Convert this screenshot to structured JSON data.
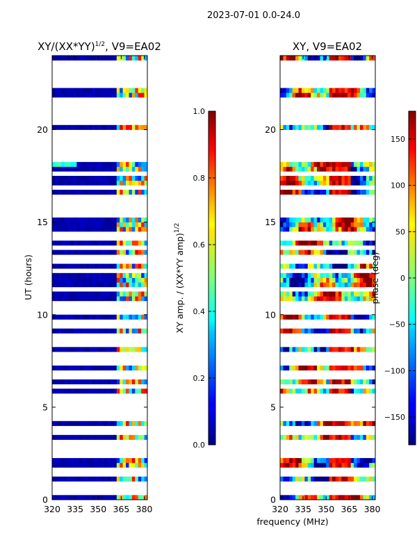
{
  "chart_data": {
    "suptitle": "2023-07-01 0.0-24.0",
    "shared_xlabel": "frequency (MHz)",
    "panels": [
      {
        "type": "heatmap",
        "title_main": "XY/(XX*YY)",
        "title_sup": "1/2",
        "title_tail": ", V9=EA02",
        "xlabel": "",
        "ylabel": "UT (hours)",
        "xlim": [
          320,
          382
        ],
        "ylim": [
          0,
          24
        ],
        "x_ticks": [
          320,
          335,
          350,
          365,
          380
        ],
        "y_ticks": [
          0,
          5,
          10,
          15,
          20
        ],
        "colorbar": {
          "label_main": "XY amp. / (XX*YY amp)",
          "label_sup": "1/2",
          "range": [
            0.0,
            1.0
          ],
          "ticks": [
            0.0,
            0.2,
            0.4,
            0.6,
            0.8,
            1.0
          ],
          "tick_labels": [
            "0.0",
            "0.2",
            "0.4",
            "0.6",
            "0.8",
            "1.0"
          ]
        }
      },
      {
        "type": "heatmap",
        "title_main": "XY, V9=EA02",
        "xlabel": "",
        "ylabel": "",
        "xlim": [
          320,
          382
        ],
        "ylim": [
          0,
          24
        ],
        "x_ticks": [
          320,
          335,
          350,
          365,
          380
        ],
        "y_ticks": [
          0,
          5,
          10,
          15,
          20
        ],
        "colorbar": {
          "label_main": "phase (deg)",
          "range": [
            -180,
            180
          ],
          "ticks": [
            -150,
            -100,
            -50,
            0,
            50,
            100,
            150
          ],
          "tick_labels": [
            "−150",
            "−100",
            "−50",
            "0",
            "50",
            "100",
            "150"
          ]
        }
      }
    ],
    "flagged_ut_hours": [
      0.3,
      0.55,
      0.9,
      1.4,
      1.6,
      2.3,
      2.75,
      3.2,
      3.6,
      3.85,
      4.5,
      4.8,
      5.1,
      5.3,
      5.6,
      6.1,
      6.6,
      6.9,
      7.3,
      7.6,
      7.9,
      8.3,
      8.5,
      8.9,
      9.3,
      9.55,
      10.2,
      10.4,
      10.6,
      11.4,
      12.3,
      13.0,
      13.7,
      14.05,
      14.4,
      15.5,
      15.85,
      16.1,
      16.3,
      16.8,
      17.6,
      18.3,
      18.6,
      18.9,
      19.2,
      19.5,
      19.75,
      20.3,
      20.75,
      21.1,
      21.3,
      21.6,
      22.4,
      22.6,
      23.0,
      23.2,
      23.5,
      23.7
    ]
  }
}
